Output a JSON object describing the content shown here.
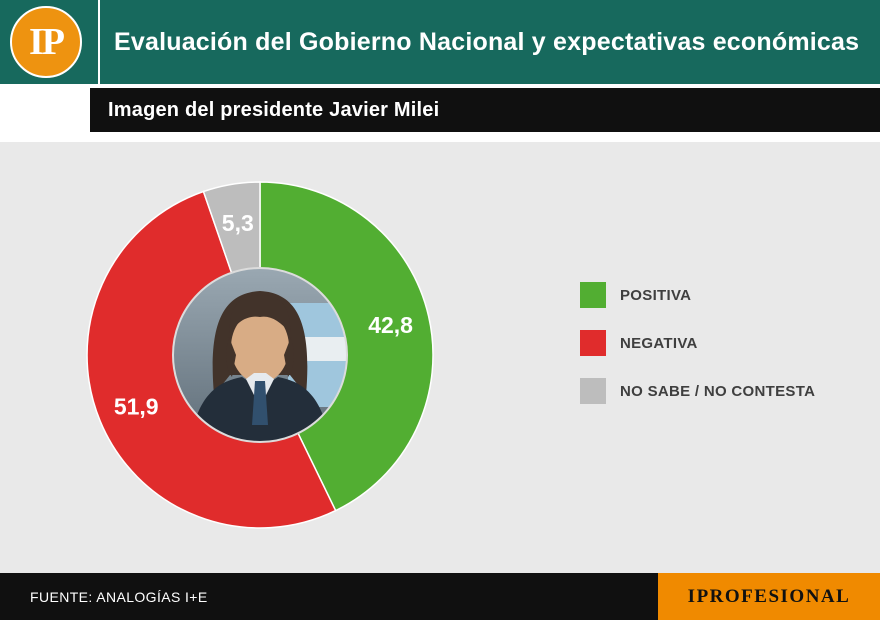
{
  "header": {
    "logo_text": "IP",
    "title": "Evaluación del Gobierno Nacional y expectativas económicas"
  },
  "subtitle": "Imagen del presidente Javier Milei",
  "chart_data": {
    "type": "pie",
    "donut": true,
    "title": "Imagen del presidente Javier Milei",
    "start_angle_deg": -90,
    "direction": "clockwise",
    "center_image": "javier-milei-portrait",
    "legend_position": "right",
    "slices": [
      {
        "label": "POSITIVA",
        "value": 42.8,
        "display": "42,8",
        "color": "#52ae32"
      },
      {
        "label": "NEGATIVA",
        "value": 51.9,
        "display": "51,9",
        "color": "#e02c2c"
      },
      {
        "label": "NO SABE / NO CONTESTA",
        "value": 5.3,
        "display": "5,3",
        "color": "#bdbdbd"
      }
    ]
  },
  "footer": {
    "source": "FUENTE: ANALOGÍAS I+E",
    "brand": "IPROFESIONAL"
  },
  "colors": {
    "header_bg": "#17695d",
    "logo_orange": "#ee9310",
    "brand_orange": "#f08a00",
    "bar_black": "#101010",
    "main_bg": "#e9e9e9"
  }
}
